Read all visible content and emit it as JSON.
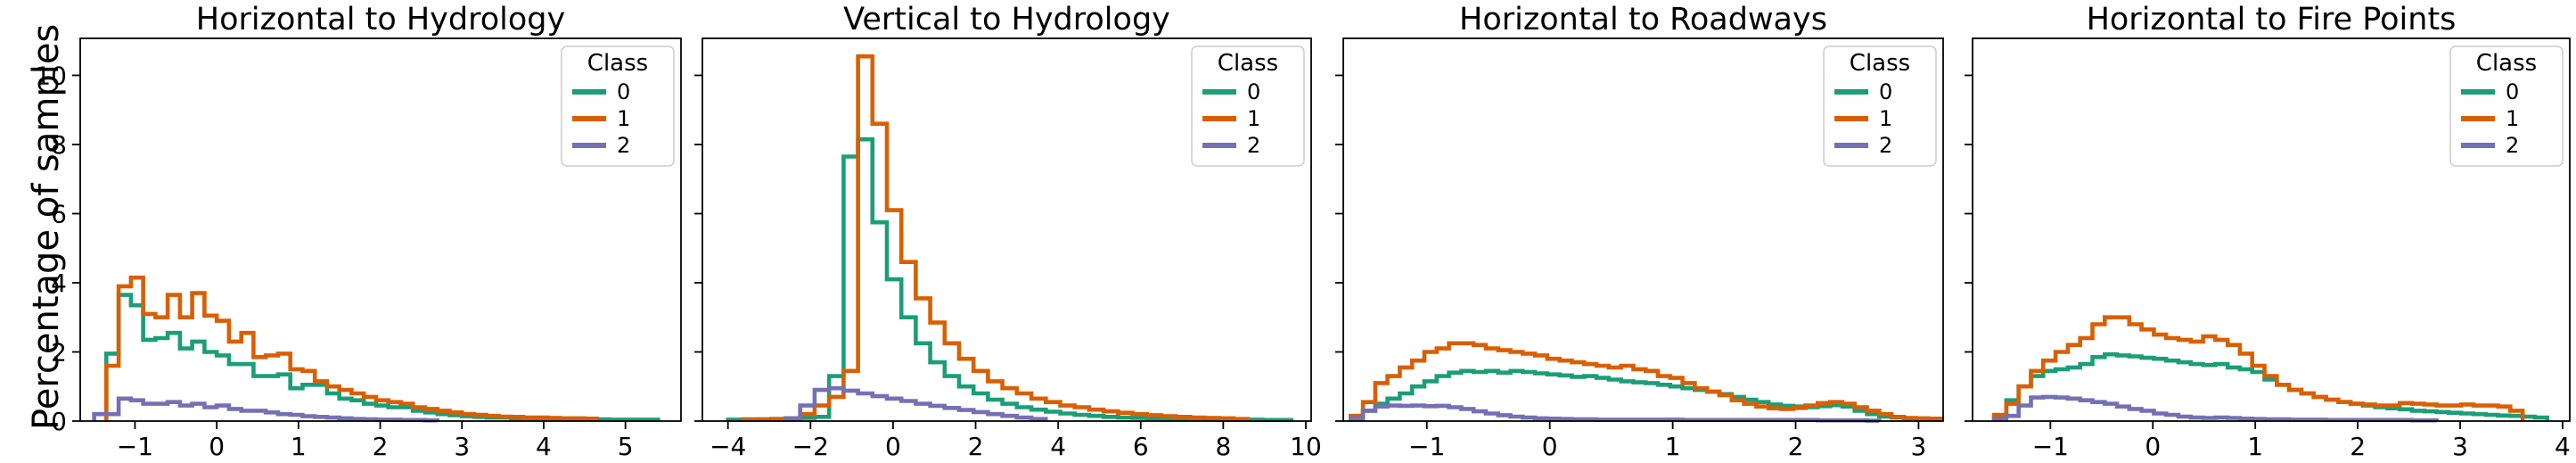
{
  "figure": {
    "ylabel": "Percentage of samples",
    "background": "#ffffff",
    "legend": {
      "title": "Class",
      "entries": [
        "0",
        "1",
        "2"
      ]
    },
    "palette": {
      "class0": "#1b9e77",
      "class1": "#d95f02",
      "class2": "#7570b3"
    }
  },
  "chart_data": [
    {
      "type": "histogram-step",
      "title": "Horizontal to Hydrology",
      "xlabel": "",
      "ylabel": "Percentage of samples",
      "xlim": [
        -1.67,
        5.68
      ],
      "ylim": [
        0,
        11.07
      ],
      "x_ticks": [
        -1,
        0,
        1,
        2,
        3,
        4,
        5
      ],
      "y_ticks": [
        0,
        2,
        4,
        6,
        8,
        10
      ],
      "show_y_tick_labels": true,
      "legend": {
        "title": "Class",
        "position": "upper right"
      },
      "bin_start": -1.5,
      "bin_width": 0.15,
      "series": [
        {
          "name": "0",
          "color": "#1b9e77",
          "values": [
            0,
            1.95,
            3.65,
            3.35,
            2.35,
            2.4,
            2.55,
            2.1,
            2.3,
            2.0,
            1.9,
            1.65,
            1.65,
            1.3,
            1.3,
            1.35,
            0.95,
            1.05,
            1.05,
            0.8,
            0.65,
            0.6,
            0.5,
            0.45,
            0.4,
            0.4,
            0.3,
            0.25,
            0.2,
            0.17,
            0.14,
            0.12,
            0.1,
            0.1,
            0.08,
            0.08,
            0.07,
            0.06,
            0.06,
            0.05,
            0.05,
            0.05,
            0.04,
            0.04,
            0.04,
            0.04
          ]
        },
        {
          "name": "1",
          "color": "#d95f02",
          "values": [
            0,
            1.6,
            3.9,
            4.15,
            3.1,
            3.0,
            3.65,
            3.0,
            3.7,
            3.05,
            2.9,
            2.3,
            2.55,
            1.85,
            1.9,
            1.95,
            1.5,
            1.45,
            1.15,
            1.0,
            0.9,
            0.8,
            0.7,
            0.6,
            0.55,
            0.5,
            0.4,
            0.35,
            0.3,
            0.25,
            0.2,
            0.18,
            0.15,
            0.13,
            0.12,
            0.1,
            0.1,
            0.09,
            0.08,
            0.08,
            0.07,
            0,
            0,
            0,
            0,
            0
          ]
        },
        {
          "name": "2",
          "color": "#7570b3",
          "values": [
            0.2,
            0.2,
            0.65,
            0.6,
            0.5,
            0.5,
            0.55,
            0.45,
            0.5,
            0.4,
            0.45,
            0.35,
            0.3,
            0.3,
            0.25,
            0.2,
            0.18,
            0.14,
            0.12,
            0.1,
            0.08,
            0.06,
            0.05,
            0.04,
            0.04,
            0.03,
            0.03,
            0.02,
            0,
            0,
            0,
            0,
            0,
            0,
            0,
            0,
            0,
            0,
            0,
            0,
            0,
            0,
            0,
            0,
            0,
            0
          ]
        }
      ]
    },
    {
      "type": "histogram-step",
      "title": "Vertical to Hydrology",
      "xlabel": "",
      "ylabel": "Percentage of samples",
      "xlim": [
        -4.62,
        10.13
      ],
      "ylim": [
        0,
        11.07
      ],
      "x_ticks": [
        -4,
        -2,
        0,
        2,
        4,
        6,
        8,
        10
      ],
      "y_ticks": [
        0,
        2,
        4,
        6,
        8,
        10
      ],
      "show_y_tick_labels": false,
      "legend": {
        "title": "Class",
        "position": "upper right"
      },
      "bin_start": -4.0,
      "bin_width": 0.35,
      "series": [
        {
          "name": "0",
          "color": "#1b9e77",
          "values": [
            0.04,
            0.05,
            0.05,
            0.06,
            0.07,
            0.09,
            0.12,
            1.3,
            7.65,
            8.15,
            5.75,
            4.1,
            3.0,
            2.25,
            1.7,
            1.3,
            1.0,
            0.8,
            0.62,
            0.5,
            0.4,
            0.33,
            0.27,
            0.22,
            0.18,
            0.15,
            0.12,
            0.1,
            0.09,
            0.08,
            0.07,
            0.06,
            0.05,
            0.05,
            0.04,
            0.04,
            0.04,
            0.03,
            0.03,
            0
          ]
        },
        {
          "name": "1",
          "color": "#d95f02",
          "values": [
            0,
            0.04,
            0.05,
            0.06,
            0.08,
            0.2,
            0.45,
            0.7,
            1.45,
            10.55,
            8.6,
            6.1,
            4.6,
            3.55,
            2.85,
            2.25,
            1.8,
            1.45,
            1.15,
            0.95,
            0.8,
            0.65,
            0.55,
            0.45,
            0.4,
            0.33,
            0.28,
            0.24,
            0.2,
            0.17,
            0.14,
            0.12,
            0.1,
            0.09,
            0.08,
            0.06,
            0,
            0,
            0,
            0
          ]
        },
        {
          "name": "2",
          "color": "#7570b3",
          "values": [
            0,
            0,
            0,
            0,
            0.08,
            0.45,
            0.9,
            0.95,
            0.88,
            0.8,
            0.72,
            0.65,
            0.58,
            0.5,
            0.44,
            0.38,
            0.32,
            0.26,
            0.2,
            0.15,
            0.1,
            0.06,
            0,
            0,
            0,
            0,
            0,
            0,
            0,
            0,
            0,
            0,
            0,
            0,
            0,
            0,
            0,
            0,
            0,
            0
          ]
        }
      ]
    },
    {
      "type": "histogram-step",
      "title": "Horizontal to Roadways",
      "xlabel": "",
      "ylabel": "Percentage of samples",
      "xlim": [
        -1.68,
        3.2
      ],
      "ylim": [
        0,
        11.07
      ],
      "x_ticks": [
        -1,
        0,
        1,
        2,
        3
      ],
      "y_ticks": [
        0,
        2,
        4,
        6,
        8,
        10
      ],
      "show_y_tick_labels": false,
      "legend": {
        "title": "Class",
        "position": "upper right"
      },
      "bin_start": -1.62,
      "bin_width": 0.1,
      "series": [
        {
          "name": "0",
          "color": "#1b9e77",
          "values": [
            0.08,
            0.3,
            0.5,
            0.65,
            0.8,
            1.0,
            1.15,
            1.3,
            1.4,
            1.45,
            1.42,
            1.45,
            1.4,
            1.45,
            1.42,
            1.38,
            1.35,
            1.32,
            1.28,
            1.3,
            1.25,
            1.2,
            1.15,
            1.12,
            1.1,
            1.05,
            1.0,
            0.95,
            0.9,
            0.85,
            0.78,
            0.7,
            0.62,
            0.55,
            0.48,
            0.44,
            0.42,
            0.4,
            0.43,
            0.46,
            0.42,
            0.3,
            0.2,
            0.13,
            0.1,
            0.08,
            0.07,
            0.06
          ]
        },
        {
          "name": "1",
          "color": "#d95f02",
          "values": [
            0.15,
            0.55,
            1.1,
            1.3,
            1.55,
            1.75,
            2.0,
            2.1,
            2.25,
            2.25,
            2.2,
            2.1,
            2.05,
            2.0,
            1.95,
            1.9,
            1.8,
            1.75,
            1.7,
            1.65,
            1.6,
            1.55,
            1.6,
            1.5,
            1.45,
            1.3,
            1.25,
            1.1,
            0.95,
            0.85,
            0.75,
            0.6,
            0.5,
            0.42,
            0.37,
            0.35,
            0.38,
            0.45,
            0.52,
            0.55,
            0.5,
            0.4,
            0.3,
            0.2,
            0.12,
            0.09,
            0.08,
            0.07
          ]
        },
        {
          "name": "2",
          "color": "#7570b3",
          "values": [
            0.08,
            0.3,
            0.42,
            0.45,
            0.44,
            0.45,
            0.43,
            0.44,
            0.4,
            0.35,
            0.28,
            0.22,
            0.17,
            0.13,
            0.1,
            0.08,
            0.07,
            0.06,
            0.05,
            0.05,
            0.04,
            0.04,
            0.04,
            0.04,
            0.04,
            0.04,
            0.04,
            0.03,
            0.03,
            0.03,
            0.03,
            0.03,
            0.03,
            0.03,
            0.03,
            0.03,
            0.03,
            0.03,
            0.02,
            0.02,
            0.02,
            0.02,
            0.01,
            0,
            0,
            0,
            0,
            0
          ]
        }
      ]
    },
    {
      "type": "histogram-step",
      "title": "Horizontal to Fire Points",
      "xlabel": "",
      "ylabel": "Percentage of samples",
      "xlim": [
        -1.76,
        4.07
      ],
      "ylim": [
        0,
        11.07
      ],
      "x_ticks": [
        -1,
        0,
        1,
        2,
        3,
        4
      ],
      "y_ticks": [
        0,
        2,
        4,
        6,
        8,
        10
      ],
      "show_y_tick_labels": false,
      "legend": {
        "title": "Class",
        "position": "upper right"
      },
      "bin_start": -1.55,
      "bin_width": 0.12,
      "series": [
        {
          "name": "0",
          "color": "#1b9e77",
          "values": [
            0.12,
            0.6,
            1.0,
            1.3,
            1.45,
            1.5,
            1.55,
            1.65,
            1.85,
            1.93,
            1.9,
            1.87,
            1.83,
            1.8,
            1.75,
            1.7,
            1.65,
            1.62,
            1.65,
            1.55,
            1.5,
            1.42,
            1.2,
            1.05,
            0.9,
            0.8,
            0.7,
            0.62,
            0.55,
            0.5,
            0.45,
            0.4,
            0.37,
            0.34,
            0.3,
            0.28,
            0.26,
            0.24,
            0.22,
            0.2,
            0.18,
            0.16,
            0.15,
            0.13,
            0.1
          ]
        },
        {
          "name": "1",
          "color": "#d95f02",
          "values": [
            0.18,
            0.5,
            1.0,
            1.45,
            1.75,
            2.0,
            2.2,
            2.4,
            2.8,
            3.0,
            3.0,
            2.8,
            2.65,
            2.5,
            2.4,
            2.35,
            2.3,
            2.45,
            2.35,
            2.2,
            1.95,
            1.6,
            1.3,
            1.05,
            0.9,
            0.8,
            0.7,
            0.62,
            0.55,
            0.5,
            0.48,
            0.45,
            0.45,
            0.52,
            0.5,
            0.48,
            0.45,
            0.45,
            0.48,
            0.45,
            0.45,
            0.42,
            0.3,
            0,
            0
          ]
        },
        {
          "name": "2",
          "color": "#7570b3",
          "values": [
            0.06,
            0.15,
            0.45,
            0.68,
            0.7,
            0.68,
            0.65,
            0.6,
            0.55,
            0.5,
            0.42,
            0.35,
            0.3,
            0.22,
            0.18,
            0.13,
            0.1,
            0.09,
            0.1,
            0.09,
            0.07,
            0.06,
            0.05,
            0.05,
            0.04,
            0.04,
            0.04,
            0.03,
            0.03,
            0.03,
            0.03,
            0.03,
            0.03,
            0.03,
            0.02,
            0.02,
            0,
            0,
            0,
            0,
            0,
            0,
            0,
            0,
            0
          ]
        }
      ]
    }
  ]
}
